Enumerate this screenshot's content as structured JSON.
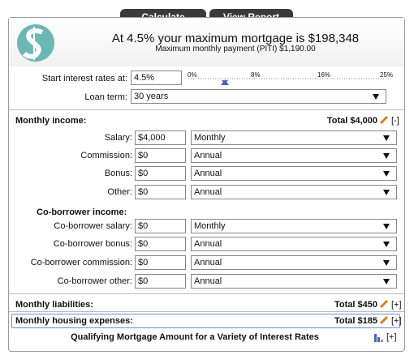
{
  "buttons": [
    "Calculate",
    "View Report"
  ],
  "header": {
    "title": "At 4.5% your maximum mortgage is $198,348",
    "subtitle": "Maximum monthly payment (PITI) $1,190.00"
  },
  "rate": {
    "label": "Start interest rates at:",
    "value": "4.5%",
    "scale": [
      "0%",
      "8%",
      "16%",
      "25%"
    ]
  },
  "loan_term": {
    "label": "Loan term:",
    "value": "30 years"
  },
  "income": {
    "title": "Monthly income:",
    "total": "Total $4,000",
    "toggle": "[-]",
    "rows": [
      {
        "label": "Salary:",
        "value": "$4,000",
        "frequency": "Monthly"
      },
      {
        "label": "Commission:",
        "value": "$0",
        "frequency": "Annual"
      },
      {
        "label": "Bonus:",
        "value": "$0",
        "frequency": "Annual"
      },
      {
        "label": "Other:",
        "value": "$0",
        "frequency": "Annual"
      }
    ],
    "co_title": "Co-borrower income:",
    "co_rows": [
      {
        "label": "Co-borrower salary:",
        "value": "$0",
        "frequency": "Monthly"
      },
      {
        "label": "Co-borrower bonus:",
        "value": "$0",
        "frequency": "Annual"
      },
      {
        "label": "Co-borrower commission:",
        "value": "$0",
        "frequency": "Annual"
      },
      {
        "label": "Co-borrower other:",
        "value": "$0",
        "frequency": "Annual"
      }
    ]
  },
  "liabilities": {
    "title": "Monthly liabilities:",
    "total": "Total $450",
    "toggle": "[+]"
  },
  "housing": {
    "title": "Monthly housing expenses:",
    "total": "Total $185",
    "toggle": "[+]"
  },
  "footer": {
    "title": "Qualifying Mortgage Amount for a Variety of Interest Rates",
    "toggle": "[+]"
  }
}
